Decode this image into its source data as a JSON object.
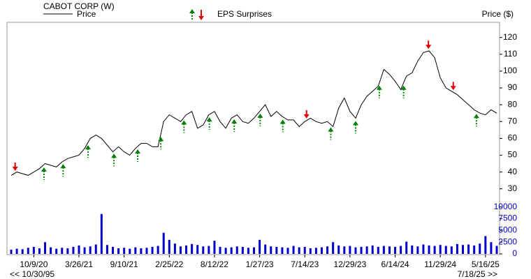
{
  "chart_data": {
    "type": "line",
    "title": "CABOT CORP (W)",
    "y_axis_label": "Price ($)",
    "series": [
      {
        "name": "Price",
        "color": "#000000",
        "values": [
          38,
          40,
          39,
          38,
          40,
          42,
          45,
          44,
          43,
          46,
          48,
          49,
          50,
          54,
          60,
          62,
          60,
          56,
          52,
          55,
          52,
          50,
          54,
          57,
          57,
          55,
          55,
          70,
          74,
          72,
          70,
          74,
          76,
          66,
          68,
          74,
          76,
          70,
          66,
          72,
          74,
          70,
          69,
          72,
          76,
          80,
          73,
          76,
          73,
          71,
          71,
          67,
          70,
          72,
          70,
          69,
          70,
          67,
          78,
          84,
          76,
          72,
          80,
          85,
          88,
          91,
          101,
          98,
          94,
          89,
          97,
          99,
          106,
          111,
          112,
          108,
          96,
          90,
          88,
          86,
          83,
          80,
          77,
          75,
          74,
          77,
          75
        ]
      }
    ],
    "eps_surprises": {
      "name": "EPS Surprises",
      "up_color": "#008000",
      "down_color": "#e00000",
      "up": [
        5.8,
        9.2,
        13.6,
        18.2,
        22.4,
        26.5,
        30.6,
        35.1,
        39.5,
        44.1,
        48.1,
        56.6,
        61,
        65.2,
        69.5,
        82.4
      ],
      "down": [
        0.7,
        52.3,
        73.9,
        78.3
      ]
    },
    "volume": {
      "color": "#0000cc",
      "values": [
        900,
        1100,
        1000,
        1300,
        1500,
        1200,
        2500,
        1400,
        1100,
        1300,
        1200,
        1500,
        1800,
        1400,
        1600,
        2000,
        8500,
        1900,
        1500,
        1200,
        1300,
        1100,
        1400,
        1200,
        1300,
        1500,
        1700,
        4500,
        3000,
        2200,
        1600,
        1800,
        2100,
        1900,
        1600,
        1700,
        2800,
        1500,
        1300,
        1400,
        1600,
        1500,
        1300,
        1400,
        3000,
        2000,
        1600,
        1500,
        1400,
        1300,
        1700,
        1400,
        1500,
        1200,
        1300,
        1400,
        1600,
        2500,
        1800,
        1600,
        1700,
        1400,
        1500,
        1600,
        1800,
        1500,
        1700,
        1600,
        1500,
        1700,
        2600,
        1800,
        1600,
        2000,
        1800,
        1700,
        1900,
        1700,
        1600,
        2100,
        1900,
        2000,
        1800,
        2200,
        3800,
        2500,
        1700
      ]
    },
    "xlim": [
      -0.5,
      86
    ],
    "ylim": [
      22,
      129
    ],
    "yticks": [
      30,
      40,
      50,
      60,
      70,
      80,
      90,
      100,
      110,
      120
    ],
    "y2lim": [
      0,
      11000
    ],
    "y2ticks": [
      0,
      2500,
      5000,
      7500,
      10000
    ],
    "xticks": [
      {
        "value": 4,
        "label": "10/9/20"
      },
      {
        "value": 12,
        "label": "3/26/21"
      },
      {
        "value": 20,
        "label": "9/10/21"
      },
      {
        "value": 28,
        "label": "2/25/22"
      },
      {
        "value": 36,
        "label": "8/12/22"
      },
      {
        "value": 44,
        "label": "1/27/23"
      },
      {
        "value": 52,
        "label": "7/14/23"
      },
      {
        "value": 60,
        "label": "12/29/23"
      },
      {
        "value": 68,
        "label": "6/14/24"
      },
      {
        "value": 76,
        "label": "11/29/24"
      },
      {
        "value": 84,
        "label": "5/16/25"
      }
    ],
    "nav_back": "<< 10/30/95",
    "nav_forward": "7/18/25 >>"
  }
}
